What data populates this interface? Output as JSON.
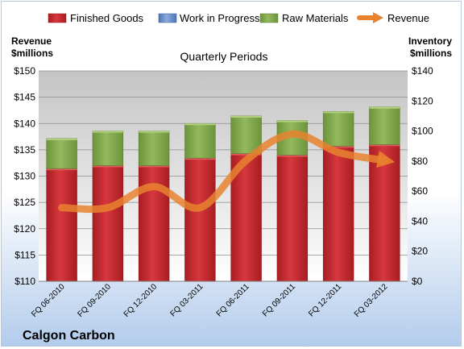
{
  "chart_data": {
    "type": "bar",
    "stacked": true,
    "title": "Quarterly Periods",
    "company": "Calgon Carbon",
    "left_axis_title": [
      "Revenue",
      "$millions"
    ],
    "right_axis_title": [
      "Inventory",
      "$millions"
    ],
    "categories": [
      "FQ 06-2010",
      "FQ 09-2010",
      "FQ 12-2010",
      "FQ 03-2011",
      "FQ 06-2011",
      "FQ 09-2011",
      "FQ 12-2011",
      "FQ 03-2012"
    ],
    "series": [
      {
        "name": "Finished Goods",
        "axis": "right",
        "type": "bar",
        "color": "#c0272d",
        "values": [
          75,
          77,
          77,
          82,
          85,
          84,
          90,
          91
        ]
      },
      {
        "name": "Work in Progress",
        "axis": "right",
        "type": "bar",
        "color": "#6a8fce",
        "values": [
          0,
          0,
          0,
          0,
          0,
          0,
          0,
          0
        ]
      },
      {
        "name": "Raw Materials",
        "axis": "right",
        "type": "bar",
        "color": "#7ea64a",
        "values": [
          20,
          23,
          23,
          23,
          25,
          23,
          23,
          25
        ]
      },
      {
        "name": "Revenue",
        "axis": "left",
        "type": "line",
        "color": "#e8822f",
        "values": [
          124,
          124,
          128,
          124,
          133,
          138,
          134.5,
          133
        ]
      }
    ],
    "left_axis": {
      "min": 110,
      "max": 150,
      "step": 5,
      "prefix": "$"
    },
    "right_axis": {
      "min": 0,
      "max": 140,
      "step": 20,
      "prefix": "$"
    },
    "grid": true,
    "legend_position": "top"
  }
}
